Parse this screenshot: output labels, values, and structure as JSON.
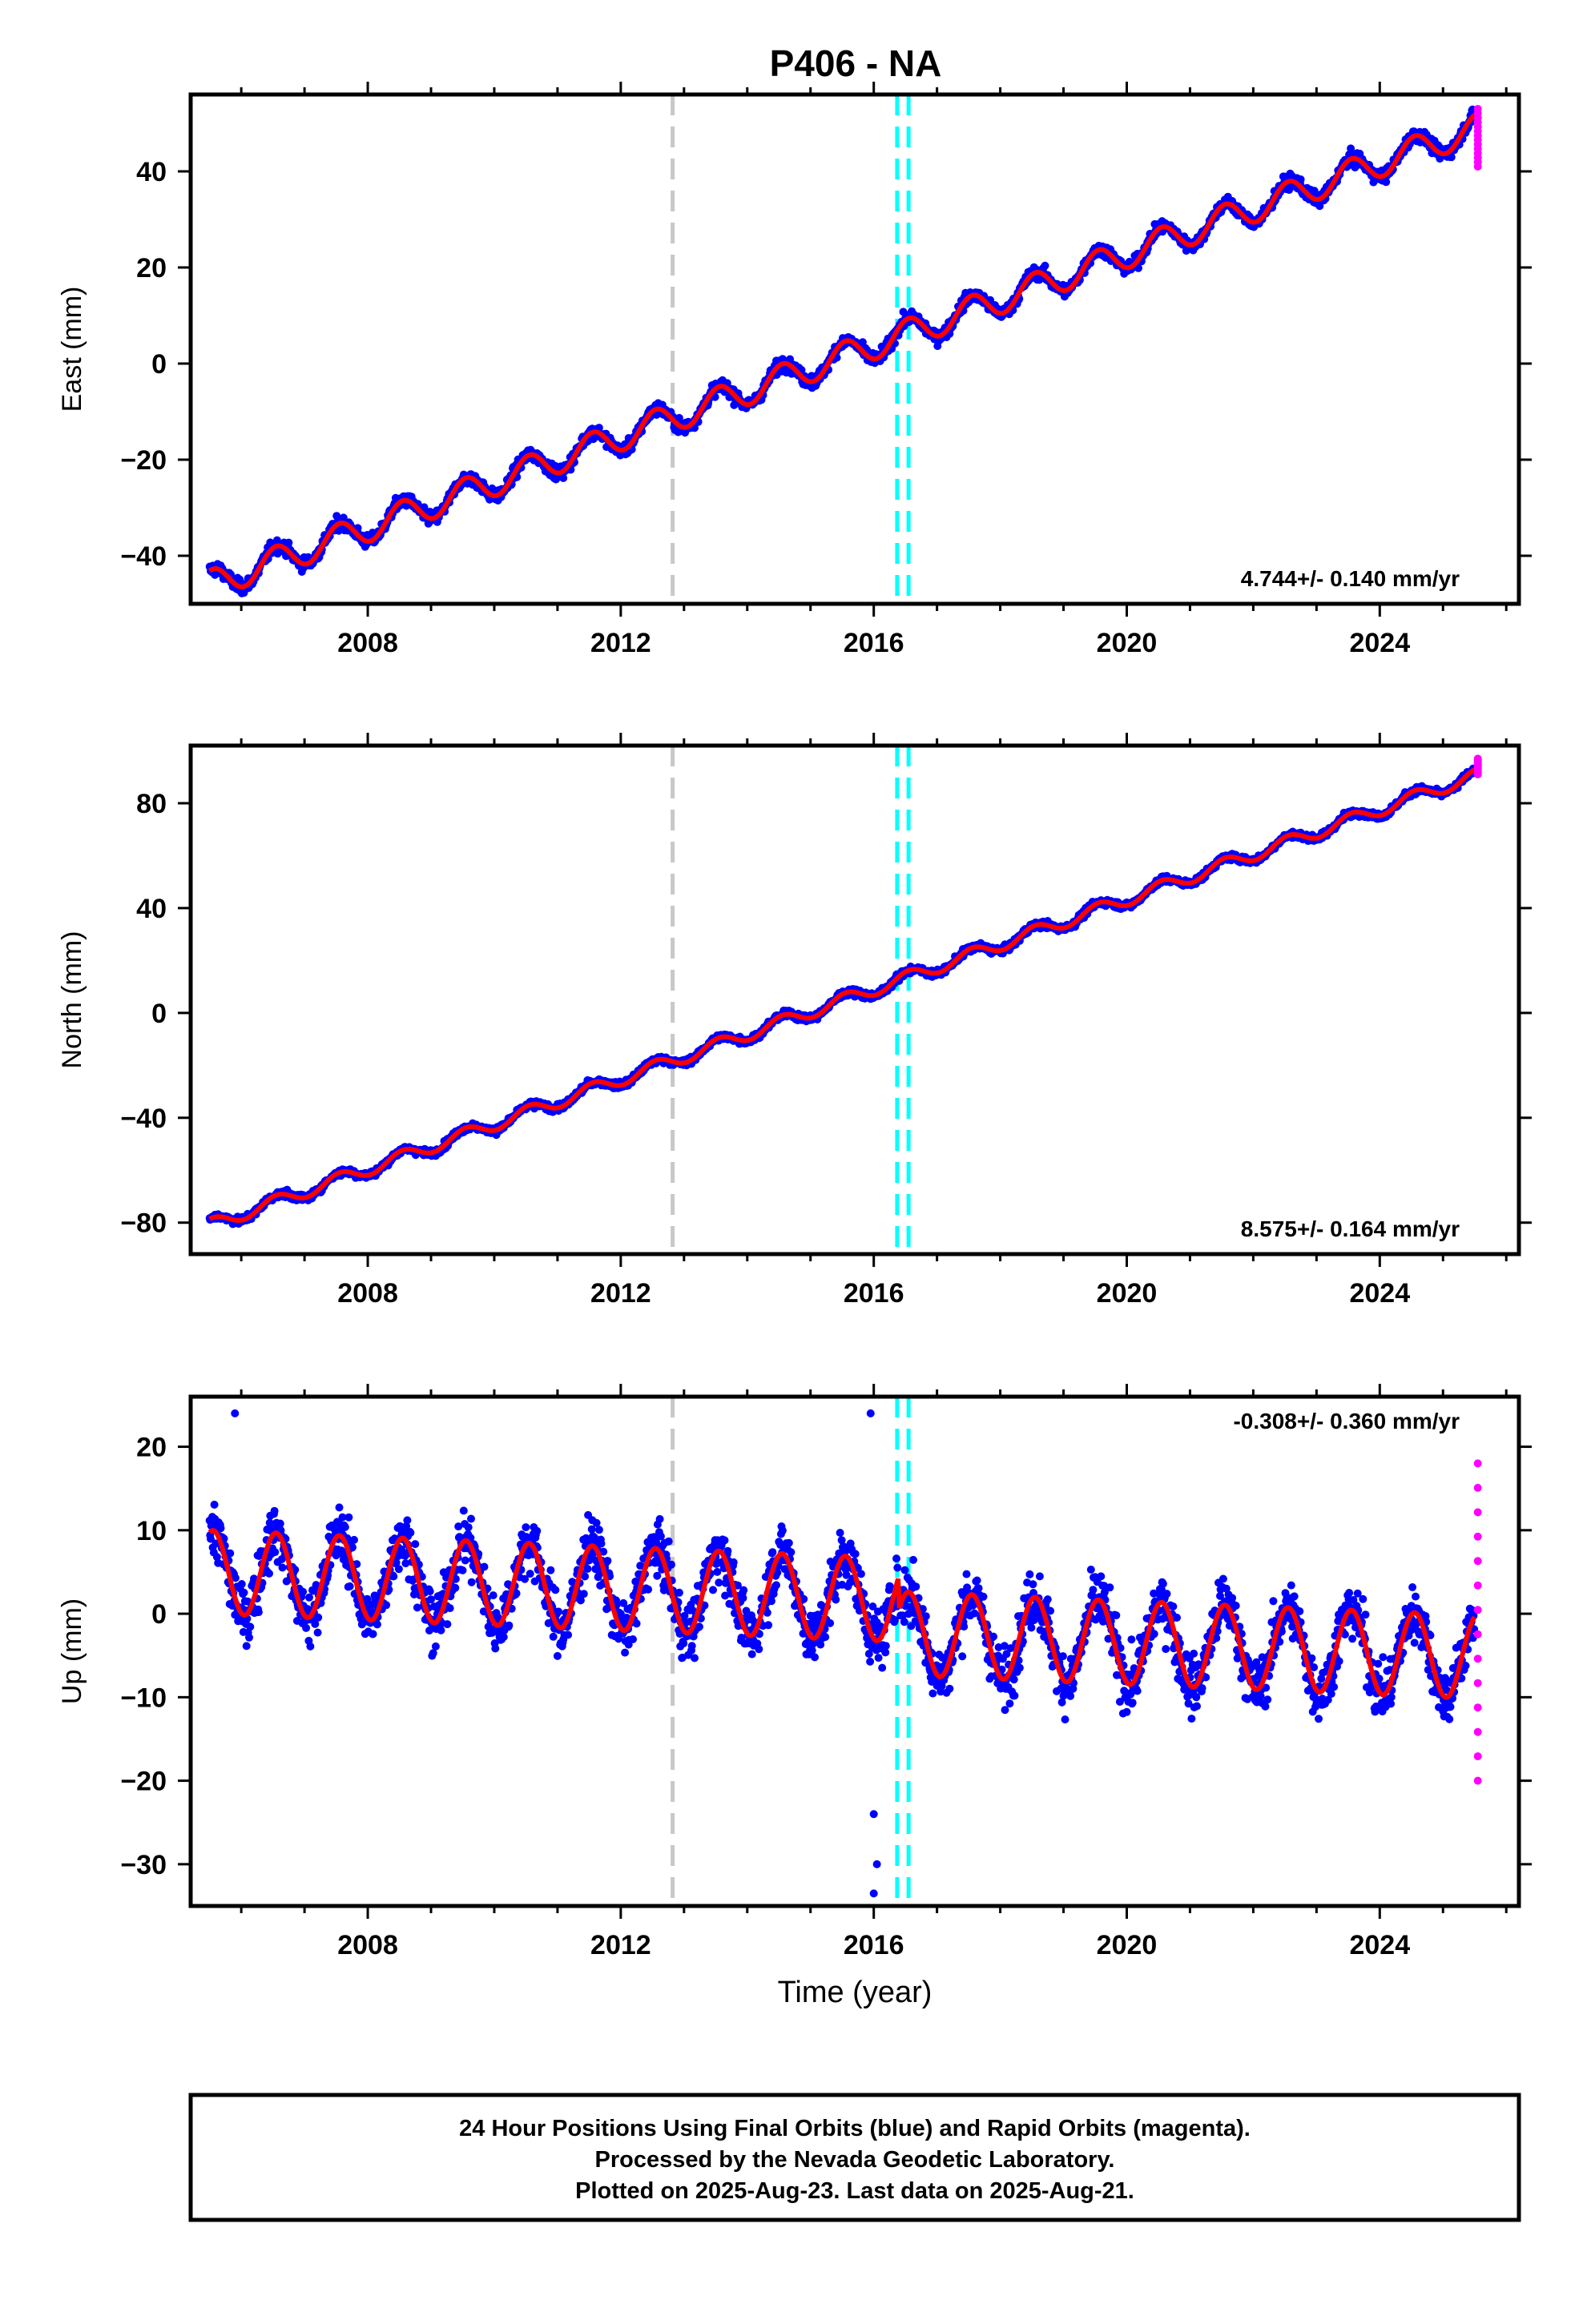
{
  "title": "P406 - NA",
  "footer": {
    "line1": "24 Hour Positions Using Final Orbits (blue) and Rapid Orbits (magenta).",
    "line2": "Processed by the Nevada Geodetic Laboratory.",
    "line3": "Plotted on 2025-Aug-23. Last data on 2025-Aug-21."
  },
  "colors": {
    "final_points": "#0000ff",
    "rapid_points": "#ff00ff",
    "model_line": "#ff0000",
    "marker_gray": "#c8c8c8",
    "marker_cyan": "#00ffff"
  },
  "chart_data": [
    {
      "type": "scatter",
      "ylabel": "East (mm)",
      "xlabel": "",
      "xlim": [
        2005.2,
        2026.2
      ],
      "ylim": [
        -50,
        56
      ],
      "xticks": [
        "2008",
        "2012",
        "2016",
        "2020",
        "2024"
      ],
      "yticks": [
        "40",
        "20",
        "0",
        "−20",
        "−40"
      ],
      "rate": "4.744+/- 0.140 mm/yr",
      "rate_position": "bottom-right",
      "series": [
        {
          "values_from": "final orbits",
          "x_start": 2005.5,
          "x_end": 2025.5,
          "y_start": -46,
          "trend_mm_per_yr": 4.744,
          "annual_amplitude": 3.0,
          "scatter": 1.6
        },
        {
          "values_from": "rapid orbits",
          "x": 2025.55,
          "y_range": [
            41,
            53
          ]
        }
      ],
      "markers": {
        "gray": [
          2012.82
        ],
        "cyan": [
          2016.37,
          2016.55
        ]
      }
    },
    {
      "type": "scatter",
      "ylabel": "North (mm)",
      "xlabel": "",
      "xlim": [
        2005.2,
        2026.2
      ],
      "ylim": [
        -92,
        102
      ],
      "xticks": [
        "2008",
        "2012",
        "2016",
        "2020",
        "2024"
      ],
      "yticks": [
        "80",
        "40",
        "0",
        "−40",
        "−80"
      ],
      "rate": "8.575+/- 0.164 mm/yr",
      "rate_position": "bottom-right",
      "series": [
        {
          "values_from": "final orbits",
          "x_start": 2005.5,
          "x_end": 2025.5,
          "y_start": -81,
          "trend_mm_per_yr": 8.575,
          "annual_amplitude": 2.5,
          "scatter": 1.6
        },
        {
          "values_from": "rapid orbits",
          "x": 2025.55,
          "y_range": [
            91,
            97
          ]
        }
      ],
      "markers": {
        "gray": [
          2012.82
        ],
        "cyan": [
          2016.37,
          2016.55
        ]
      }
    },
    {
      "type": "scatter",
      "ylabel": "Up (mm)",
      "xlabel": "Time (year)",
      "xlim": [
        2005.2,
        2026.2
      ],
      "ylim": [
        -35,
        26
      ],
      "xticks": [
        "2008",
        "2012",
        "2016",
        "2020",
        "2024"
      ],
      "yticks": [
        "20",
        "10",
        "0",
        "−10",
        "−20",
        "−30"
      ],
      "rate": "-0.308+/- 0.360 mm/yr",
      "rate_position": "top-right",
      "series": [
        {
          "values_from": "final orbits",
          "x_start": 2005.5,
          "x_end": 2025.5,
          "y_start": 5,
          "trend_mm_per_yr": -0.308,
          "annual_amplitude": 5.0,
          "scatter": 4.0,
          "step_at": 2016.4,
          "step_mm": -4
        },
        {
          "values_from": "rapid orbits",
          "x": 2025.55,
          "y_range": [
            -20,
            18
          ]
        }
      ],
      "markers": {
        "gray": [
          2012.82
        ],
        "cyan": [
          2016.37,
          2016.55
        ]
      }
    }
  ]
}
